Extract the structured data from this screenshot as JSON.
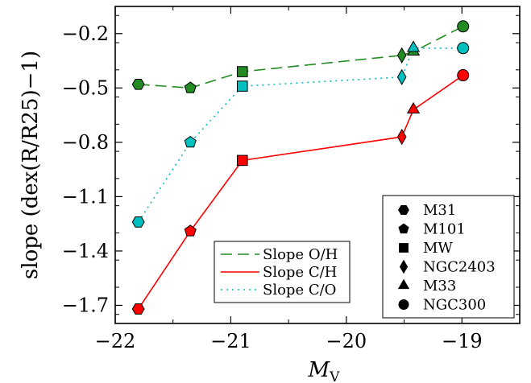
{
  "chart_data": {
    "type": "line",
    "xlabel": "M",
    "xlabel_sub": "V",
    "ylabel": "slope (dex(R/R25)−1)",
    "xlim": [
      -22.0,
      -18.5
    ],
    "ylim": [
      -1.8,
      -0.05
    ],
    "xticks": [
      -22,
      -21,
      -20,
      -19
    ],
    "xtick_labels": [
      "−22",
      "−21",
      "−20",
      "−19"
    ],
    "yticks": [
      -0.2,
      -0.5,
      -0.8,
      -1.1,
      -1.4,
      -1.7
    ],
    "ytick_labels": [
      "−0.2",
      "−0.5",
      "−0.8",
      "−1.1",
      "−1.4",
      "−1.7"
    ],
    "galaxies": [
      {
        "name": "M31",
        "marker": "hexagon",
        "x": -21.8
      },
      {
        "name": "M101",
        "marker": "pentagon",
        "x": -21.35
      },
      {
        "name": "MW",
        "marker": "square",
        "x": -20.9
      },
      {
        "name": "NGC2403",
        "marker": "diamond",
        "x": -19.52
      },
      {
        "name": "M33",
        "marker": "triangle",
        "x": -19.42
      },
      {
        "name": "NGC300",
        "marker": "circle",
        "x": -18.99
      }
    ],
    "series": [
      {
        "name": "Slope O/H",
        "color": "#228b22",
        "dash": "dashed",
        "values": [
          -0.48,
          -0.5,
          -0.41,
          -0.32,
          -0.3,
          -0.16
        ]
      },
      {
        "name": "Slope C/H",
        "color": "#ff0000",
        "dash": "solid",
        "values": [
          -1.72,
          -1.29,
          -0.9,
          -0.77,
          -0.62,
          -0.43
        ]
      },
      {
        "name": "Slope C/O",
        "color": "#00bfbf",
        "dash": "dotted",
        "values": [
          -1.24,
          -0.8,
          -0.49,
          -0.44,
          -0.28,
          -0.28
        ]
      }
    ],
    "series_legend_position": "lower-center",
    "marker_legend_position": "lower-right",
    "grid": false
  }
}
